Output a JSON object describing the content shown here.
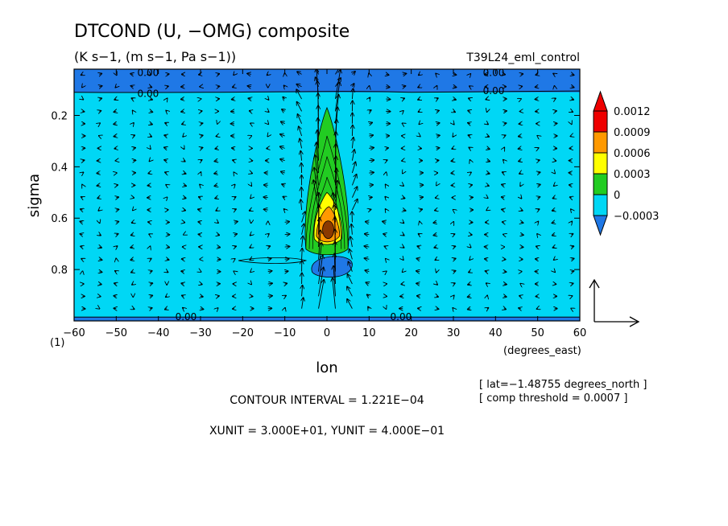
{
  "chart_data": {
    "type": "heatmap",
    "title": "DTCOND (U, −OMG) composite",
    "subtitle": "(K s−1, (m s−1, Pa s−1))",
    "experiment": "T39L24_eml_control",
    "xlabel": "lon",
    "xunits": "(degrees_east)",
    "ylabel": "sigma",
    "xlim": [
      -60,
      60
    ],
    "ylim": [
      1.0,
      0.02
    ],
    "y_inverted": true,
    "x_ticks": [
      -60,
      -50,
      -40,
      -30,
      -20,
      -10,
      0,
      10,
      20,
      30,
      40,
      50,
      60
    ],
    "x_tick_labels": [
      "−60",
      "−50",
      "−40",
      "−30",
      "−20",
      "−10",
      "0",
      "10",
      "20",
      "30",
      "40",
      "50",
      "60"
    ],
    "y_ticks": [
      0.2,
      0.4,
      0.6,
      0.8
    ],
    "y_tick_labels": [
      "0.2",
      "0.4",
      "0.6",
      "0.8"
    ],
    "y_bottom_label": "(1)",
    "colorbar": {
      "levels": [
        -0.0003,
        0,
        0.0003,
        0.0006,
        0.0009,
        0.0012
      ],
      "labels": [
        "−0.0003",
        "0",
        "0.0003",
        "0.0006",
        "0.0009",
        "0.0012"
      ],
      "colors": [
        "#1f78e6",
        "#00d7f5",
        "#22cc22",
        "#ffff00",
        "#ff9900",
        "#ee0000"
      ],
      "below_color": "#1f78e6",
      "above_color": "#ee0000"
    },
    "contour_labels": [
      "0.00",
      "0.00",
      "0.00",
      "0.00",
      "0.00",
      "0.00"
    ],
    "features": [
      {
        "kind": "heating-max",
        "lon": 0,
        "sigma": 0.62,
        "value": 0.0012
      },
      {
        "kind": "heating-plume-top",
        "lon": 0,
        "sigma": 0.16,
        "value": 0.0003
      },
      {
        "kind": "cooling-min",
        "lon": 0,
        "sigma": 0.77,
        "value": -0.0003
      }
    ],
    "vector_reference": {
      "x_unit": 30.0,
      "y_unit": 0.4
    },
    "info": {
      "latitude": "[ lat=−1.48755 degrees_north ]",
      "threshold": "[ comp threshold = 0.0007 ]",
      "contour_interval": "CONTOUR INTERVAL = 1.221E−04",
      "units": "XUNIT = 3.000E+01, YUNIT = 4.000E−01"
    }
  }
}
